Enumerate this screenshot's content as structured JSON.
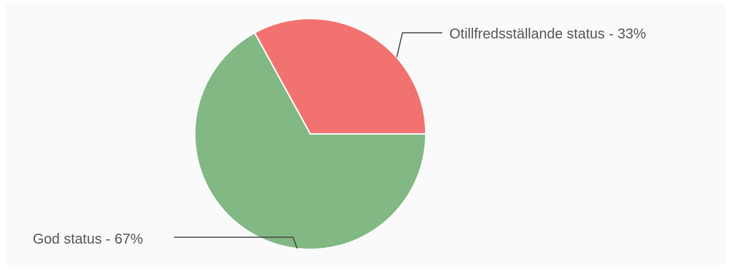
{
  "chart_data": {
    "type": "pie",
    "slices": [
      {
        "label": "Otillfredsställande status  - 33%",
        "value": 33,
        "color": "#f2726f"
      },
      {
        "label": "God status - 67%",
        "value": 67,
        "color": "#82b883"
      }
    ],
    "legend": "none",
    "labels": "outside with leader lines"
  }
}
